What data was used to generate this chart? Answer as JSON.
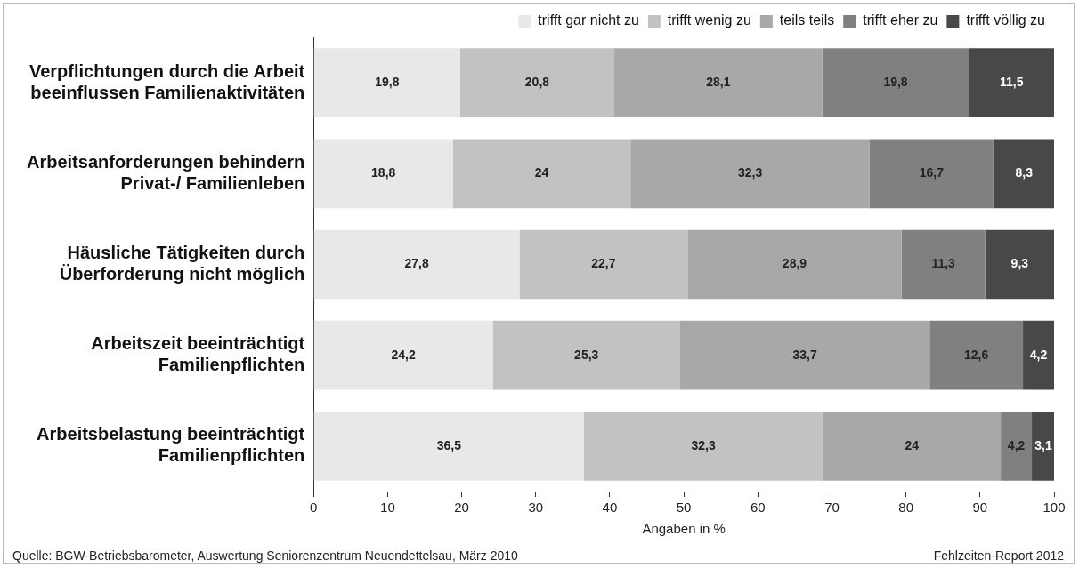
{
  "chart_data": {
    "type": "bar",
    "orientation": "horizontal",
    "stacked": true,
    "xlabel": "Angaben in %",
    "categories": [
      "Verpflichtungen durch die Arbeit beeinflussen Familienaktivitäten",
      "Arbeitsanforderungen behindern Privat-/ Familienleben",
      "Häusliche Tätigkeiten durch Überforderung nicht möglich",
      "Arbeitszeit beeinträchtigt Familienpflichten",
      "Arbeitsbelastung beeinträchtigt Familienpflichten"
    ],
    "series": [
      {
        "name": "trifft gar nicht zu",
        "color": "#e8e8e8",
        "values": [
          19.8,
          18.8,
          27.8,
          24.2,
          36.5
        ],
        "value_labels": [
          "19,8",
          "18,8",
          "27,8",
          "24,2",
          "36,5"
        ]
      },
      {
        "name": "trifft wenig zu",
        "color": "#c2c2c2",
        "values": [
          20.8,
          24,
          22.7,
          25.3,
          32.3
        ],
        "value_labels": [
          "20,8",
          "24",
          "22,7",
          "25,3",
          "32,3"
        ]
      },
      {
        "name": "teils teils",
        "color": "#a8a8a8",
        "values": [
          28.1,
          32.3,
          28.9,
          33.7,
          24
        ],
        "value_labels": [
          "28,1",
          "32,3",
          "28,9",
          "33,7",
          "24"
        ]
      },
      {
        "name": "trifft eher zu",
        "color": "#808080",
        "values": [
          19.8,
          16.7,
          11.3,
          12.6,
          4.2
        ],
        "value_labels": [
          "19,8",
          "16,7",
          "11,3",
          "12,6",
          "4,2"
        ]
      },
      {
        "name": "trifft völlig zu",
        "color": "#484848",
        "values": [
          11.5,
          8.3,
          9.3,
          4.2,
          3.1
        ],
        "value_labels": [
          "11,5",
          "8,3",
          "9,3",
          "4,2",
          "3,1"
        ]
      }
    ],
    "xlim": [
      0,
      100
    ],
    "xticks": [
      0,
      10,
      20,
      30,
      40,
      50,
      60,
      70,
      80,
      90,
      100
    ],
    "grid": false,
    "legend": "top right",
    "annotations": [
      "Quelle: BGW-Betriebsbarometer, Auswertung Seniorenzentrum Neuendettelsau, März 2010",
      "Fehlzeiten-Report 2012"
    ]
  }
}
